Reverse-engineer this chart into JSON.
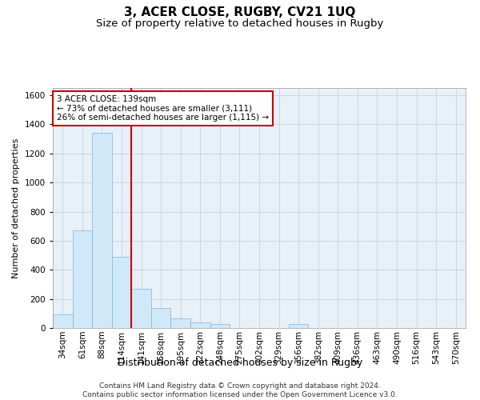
{
  "title": "3, ACER CLOSE, RUGBY, CV21 1UQ",
  "subtitle": "Size of property relative to detached houses in Rugby",
  "xlabel": "Distribution of detached houses by size in Rugby",
  "ylabel": "Number of detached properties",
  "annotation_line1": "3 ACER CLOSE: 139sqm",
  "annotation_line2": "← 73% of detached houses are smaller (3,111)",
  "annotation_line3": "26% of semi-detached houses are larger (1,115) →",
  "footer_line1": "Contains HM Land Registry data © Crown copyright and database right 2024.",
  "footer_line2": "Contains public sector information licensed under the Open Government Licence v3.0.",
  "bin_labels": [
    "34sqm",
    "61sqm",
    "88sqm",
    "114sqm",
    "141sqm",
    "168sqm",
    "195sqm",
    "222sqm",
    "248sqm",
    "275sqm",
    "302sqm",
    "329sqm",
    "356sqm",
    "382sqm",
    "409sqm",
    "436sqm",
    "463sqm",
    "490sqm",
    "516sqm",
    "543sqm",
    "570sqm"
  ],
  "bar_values": [
    95,
    670,
    1340,
    490,
    270,
    140,
    65,
    40,
    30,
    0,
    0,
    0,
    25,
    0,
    0,
    0,
    0,
    0,
    0,
    0,
    0
  ],
  "bar_color": "#d0e8f8",
  "bar_edge_color": "#7ab8e0",
  "vline_color": "#cc0000",
  "ylim": [
    0,
    1650
  ],
  "yticks": [
    0,
    200,
    400,
    600,
    800,
    1000,
    1200,
    1400,
    1600
  ],
  "grid_color": "#c8d8ea",
  "bg_color": "#e8f0f8",
  "annotation_box_facecolor": "white",
  "annotation_box_edgecolor": "#cc0000",
  "title_fontsize": 11,
  "subtitle_fontsize": 9.5,
  "xlabel_fontsize": 9,
  "ylabel_fontsize": 8,
  "tick_fontsize": 7.5,
  "annotation_fontsize": 7.5,
  "footer_fontsize": 6.5
}
